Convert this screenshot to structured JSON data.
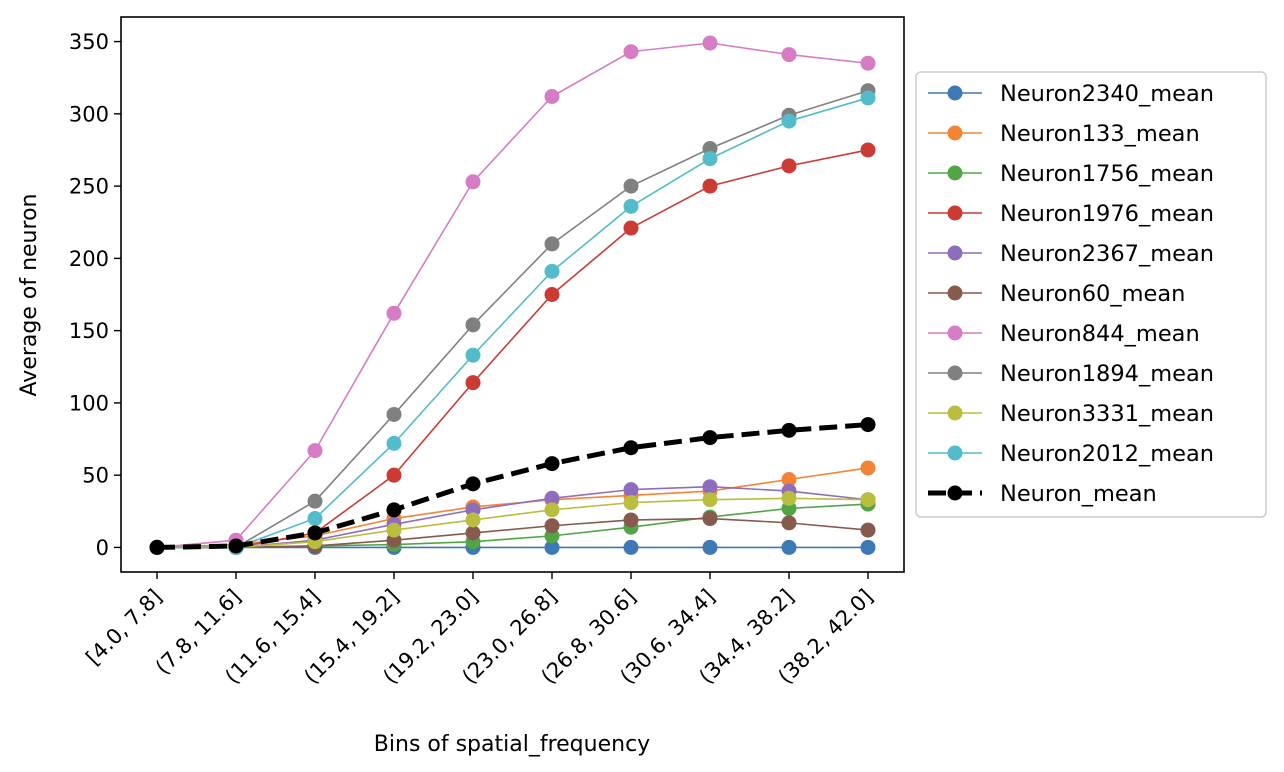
{
  "chart_data": {
    "type": "line",
    "title": "",
    "xlabel": "Bins of spatial_frequency",
    "ylabel": "Average of neuron",
    "categories": [
      "[4.0,  7.8]",
      "(7.8, 11.6]",
      "(11.6, 15.4]",
      "(15.4, 19.2]",
      "(19.2, 23.0]",
      "(23.0, 26.8]",
      "(26.8, 30.6]",
      "(30.6, 34.4]",
      "(34.4, 38.2]",
      "(38.2, 42.0]"
    ],
    "ylim": [
      -17,
      367
    ],
    "yticks": [
      0,
      50,
      100,
      150,
      200,
      250,
      300,
      350
    ],
    "grid": false,
    "legend_position": "right, outside plot",
    "series": [
      {
        "name": "Neuron2340_mean",
        "color": "#3d79b5",
        "values": [
          0,
          0,
          0,
          0,
          0,
          0,
          0,
          0,
          0,
          0
        ]
      },
      {
        "name": "Neuron133_mean",
        "color": "#f28535",
        "values": [
          0,
          2,
          8,
          20,
          28,
          33,
          36,
          39,
          47,
          55
        ]
      },
      {
        "name": "Neuron1756_mean",
        "color": "#52a546",
        "values": [
          0,
          0,
          1,
          2,
          4,
          8,
          14,
          21,
          27,
          30
        ]
      },
      {
        "name": "Neuron1976_mean",
        "color": "#cb3a33",
        "values": [
          0,
          0,
          10,
          50,
          114,
          175,
          221,
          250,
          264,
          275
        ]
      },
      {
        "name": "Neuron2367_mean",
        "color": "#8f6dbd",
        "values": [
          0,
          0,
          5,
          16,
          26,
          34,
          40,
          42,
          39,
          33
        ]
      },
      {
        "name": "Neuron60_mean",
        "color": "#875a4e",
        "values": [
          0,
          0,
          1,
          5,
          10,
          15,
          19,
          20,
          17,
          12
        ]
      },
      {
        "name": "Neuron844_mean",
        "color": "#d77cc4",
        "values": [
          0,
          5,
          67,
          162,
          253,
          312,
          343,
          349,
          341,
          335
        ]
      },
      {
        "name": "Neuron1894_mean",
        "color": "#808080",
        "values": [
          0,
          0,
          32,
          92,
          154,
          210,
          250,
          276,
          299,
          316
        ]
      },
      {
        "name": "Neuron3331_mean",
        "color": "#b9be3e",
        "values": [
          0,
          0,
          4,
          12,
          19,
          26,
          31,
          33,
          34,
          33
        ]
      },
      {
        "name": "Neuron2012_mean",
        "color": "#52bcca",
        "values": [
          0,
          0,
          20,
          72,
          133,
          191,
          236,
          269,
          295,
          311
        ]
      },
      {
        "name": "Neuron_mean",
        "color": "#000000",
        "dashed": true,
        "values": [
          0,
          1,
          10,
          26,
          44,
          58,
          69,
          76,
          81,
          85
        ]
      }
    ]
  }
}
